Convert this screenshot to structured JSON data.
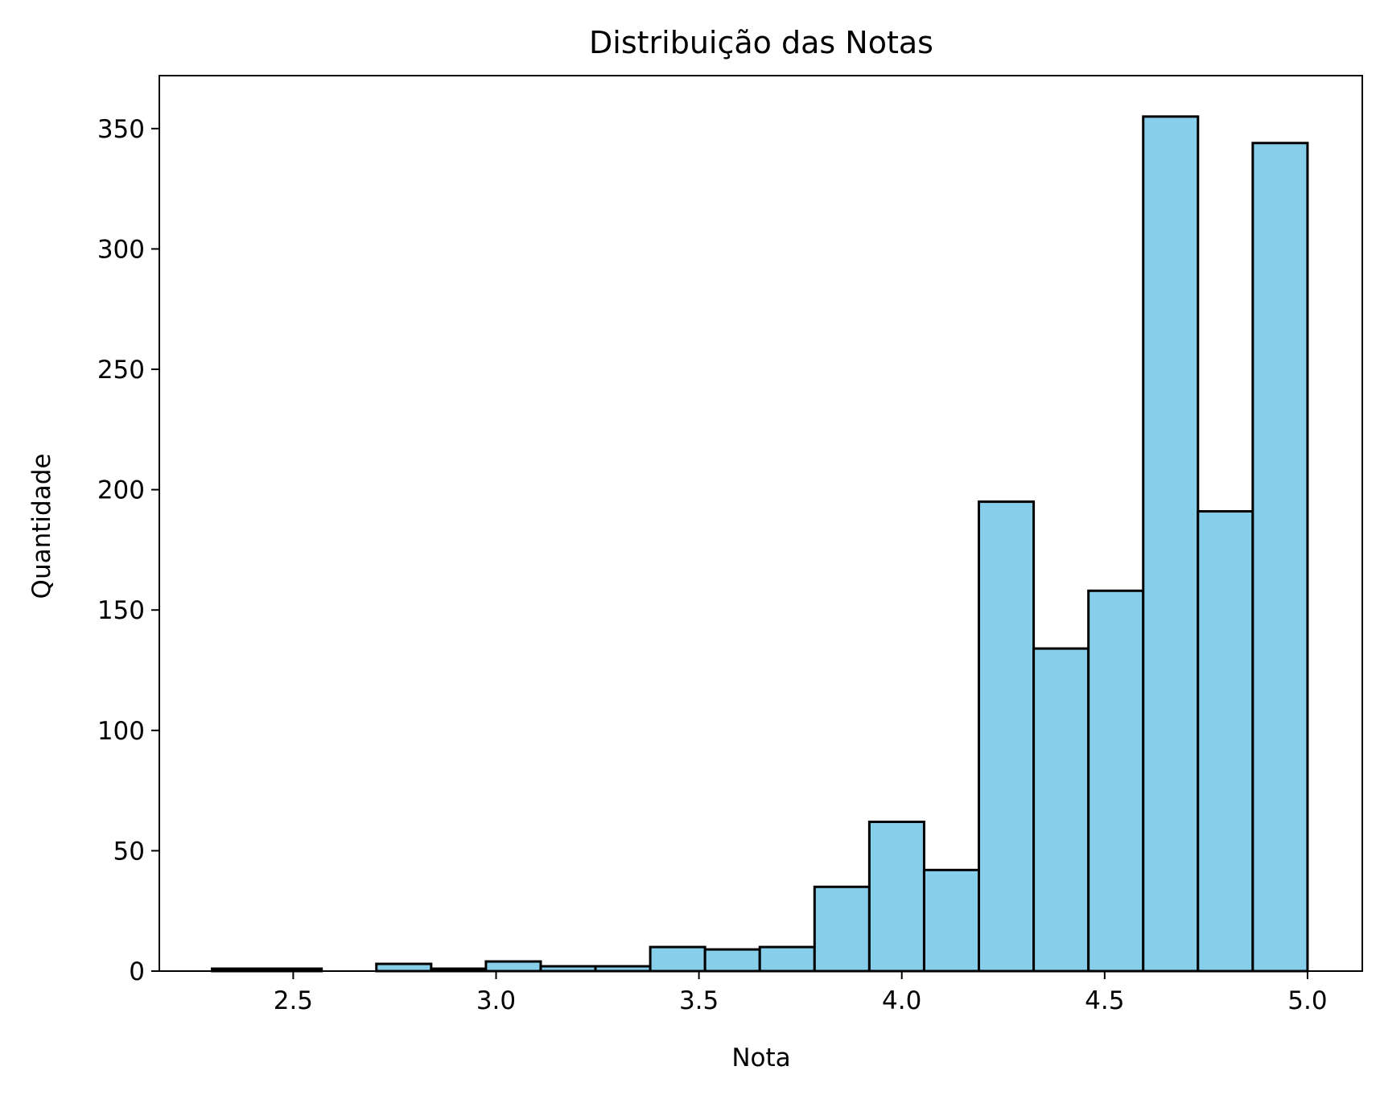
{
  "chart_data": {
    "type": "bar",
    "title": "Distribuição das Notas",
    "xlabel": "Nota",
    "ylabel": "Quantidade",
    "xlim": [
      2.17,
      5.135
    ],
    "ylim": [
      0,
      372
    ],
    "grid": false,
    "x_ticks": [
      2.5,
      3.0,
      3.5,
      4.0,
      4.5,
      5.0
    ],
    "x_tick_labels": [
      "2.5",
      "3.0",
      "3.5",
      "4.0",
      "4.5",
      "5.0"
    ],
    "y_ticks": [
      0,
      50,
      100,
      150,
      200,
      250,
      300,
      350
    ],
    "y_tick_labels": [
      "0",
      "50",
      "100",
      "150",
      "200",
      "250",
      "300",
      "350"
    ],
    "bar_color": "#87ceeb",
    "edge_color": "#000000",
    "bins": [
      [
        2.3,
        2.435
      ],
      [
        2.435,
        2.57
      ],
      [
        2.57,
        2.705
      ],
      [
        2.705,
        2.84
      ],
      [
        2.84,
        2.975
      ],
      [
        2.975,
        3.11
      ],
      [
        3.11,
        3.245
      ],
      [
        3.245,
        3.38
      ],
      [
        3.38,
        3.515
      ],
      [
        3.515,
        3.65
      ],
      [
        3.65,
        3.785
      ],
      [
        3.785,
        3.92
      ],
      [
        3.92,
        4.055
      ],
      [
        4.055,
        4.19
      ],
      [
        4.19,
        4.325
      ],
      [
        4.325,
        4.46
      ],
      [
        4.46,
        4.595
      ],
      [
        4.595,
        4.73
      ],
      [
        4.73,
        4.865
      ],
      [
        4.865,
        5.0
      ]
    ],
    "values": [
      1,
      1,
      0,
      3,
      1,
      4,
      2,
      2,
      10,
      9,
      10,
      35,
      62,
      42,
      195,
      134,
      158,
      355,
      191,
      344
    ]
  }
}
